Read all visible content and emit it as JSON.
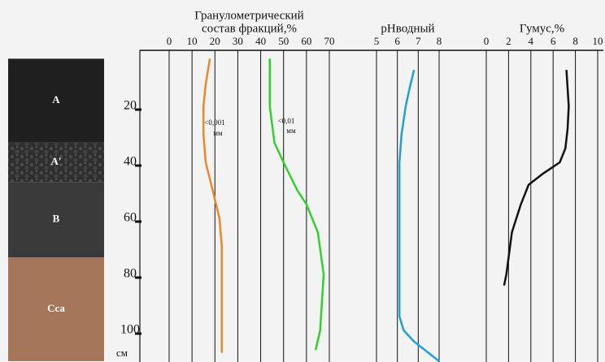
{
  "depth_axis": {
    "lim": [
      0,
      111
    ],
    "ticks": [
      20,
      40,
      60,
      80,
      100
    ],
    "unit": "см"
  },
  "soil_profile": {
    "horizons": [
      {
        "label": "A",
        "top": 3,
        "bottom": 33,
        "color": "#1f1f1f"
      },
      {
        "label": "A'",
        "top": 33,
        "bottom": 47,
        "color": "#2e2e2e"
      },
      {
        "label": "B",
        "top": 47,
        "bottom": 74,
        "color": "#3a3a3a"
      },
      {
        "label": "Cca",
        "top": 74,
        "bottom": 111,
        "color": "#a5765a"
      }
    ]
  },
  "chart_data": [
    {
      "type": "line",
      "title": [
        "Гранулометрический",
        "состав фракций,%"
      ],
      "xlim": [
        0,
        70
      ],
      "xticks": [
        0,
        10,
        20,
        30,
        40,
        50,
        60,
        70
      ],
      "series": [
        {
          "name": "<0,001",
          "unit": "мм",
          "color": "#e8892a",
          "values": [
            17.8,
            16,
            15,
            15,
            16,
            19,
            22,
            23,
            23,
            23
          ],
          "depths": [
            3,
            12,
            20,
            30,
            40,
            50,
            60,
            70,
            85,
            108
          ]
        },
        {
          "name": "<0,01",
          "unit": "мм",
          "color": "#2fd12f",
          "values": [
            44,
            44,
            44,
            46,
            50,
            56,
            60,
            65,
            67.5,
            66,
            64
          ],
          "depths": [
            3,
            12,
            20,
            33,
            40,
            50,
            55,
            65,
            80,
            100,
            107
          ]
        }
      ]
    },
    {
      "type": "line",
      "title": [
        "рНводный"
      ],
      "xlim": [
        5,
        8
      ],
      "xticks": [
        5,
        6,
        7,
        8
      ],
      "series": [
        {
          "color": "#1e9fd6",
          "values": [
            6.8,
            6.6,
            6.4,
            6.2,
            6.1,
            6.1,
            6.1,
            6.1,
            6.3,
            6.8,
            8.0
          ],
          "depths": [
            7,
            13,
            20,
            30,
            40,
            60,
            80,
            95,
            100,
            104,
            111
          ]
        }
      ]
    },
    {
      "type": "line",
      "title": [
        "Гумус,%"
      ],
      "xlim": [
        0,
        10
      ],
      "xticks": [
        0,
        2,
        4,
        6,
        8,
        10
      ],
      "series": [
        {
          "color": "#111111",
          "values": [
            7.2,
            7.4,
            7.3,
            7.1,
            6.6,
            5.1,
            3.8,
            3.1,
            2.3,
            1.8,
            1.6
          ],
          "depths": [
            7,
            20,
            28,
            35,
            40,
            44,
            48,
            55,
            65,
            80,
            84
          ]
        }
      ]
    }
  ]
}
